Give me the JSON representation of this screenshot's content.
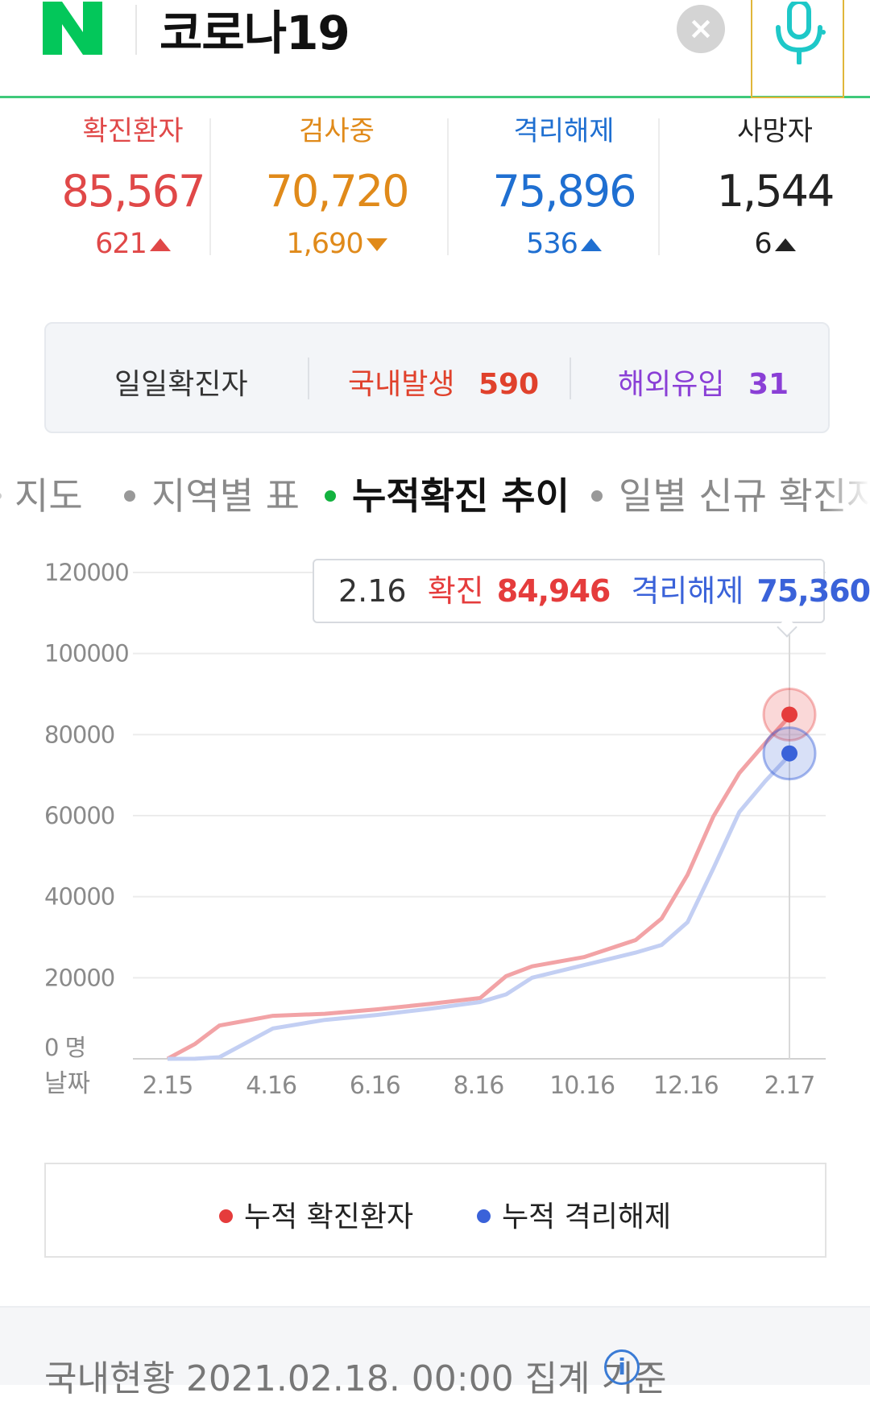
{
  "header": {
    "logo_letter": "N",
    "query": "코로나19",
    "clear_glyph": "×",
    "icons": [
      "naver-logo",
      "clear-icon",
      "microphone-icon"
    ],
    "brand_color": "#03c75a",
    "mic_color": "#1ec8c8"
  },
  "stats": [
    {
      "label": "확진환자",
      "value": "85,567",
      "change": "621",
      "direction": "up",
      "color": "#e04848"
    },
    {
      "label": "검사중",
      "value": "70,720",
      "change": "1,690",
      "direction": "down",
      "color": "#e08a1a"
    },
    {
      "label": "격리해제",
      "value": "75,896",
      "change": "536",
      "direction": "up",
      "color": "#1f6fd1"
    },
    {
      "label": "사망자",
      "value": "1,544",
      "change": "6",
      "direction": "up",
      "color": "#222222"
    }
  ],
  "daily": {
    "label": "일일확진자",
    "domestic_label": "국내발생",
    "domestic_value": "590",
    "overseas_label": "해외유입",
    "overseas_value": "31"
  },
  "tabs": [
    {
      "label": "지도",
      "active": false
    },
    {
      "label": "지역별 표",
      "active": false
    },
    {
      "label": "누적확진 추이",
      "active": true
    },
    {
      "label": "일별 신규 확진자",
      "active": false
    }
  ],
  "tooltip": {
    "date": "2.16",
    "confirmed_label": "확진",
    "confirmed_value": "84,946",
    "released_label": "격리해제",
    "released_value": "75,360"
  },
  "chart_data": {
    "type": "line",
    "y_ticks": [
      "120000",
      "100000",
      "80000",
      "60000",
      "40000",
      "20000",
      "0 명"
    ],
    "ylim": [
      0,
      120000
    ],
    "xlabel": "날짜",
    "x_ticks": [
      "2.15",
      "4.16",
      "6.16",
      "8.16",
      "10.16",
      "12.16",
      "2.17"
    ],
    "grid": true,
    "series": [
      {
        "name": "누적 확진환자",
        "color": "#f2a3a6",
        "x": [
          "2.15",
          "3.1",
          "3.15",
          "4.16",
          "5.16",
          "6.16",
          "7.16",
          "8.16",
          "9.1",
          "9.16",
          "10.16",
          "11.16",
          "12.1",
          "12.16",
          "1.1",
          "1.16",
          "2.1",
          "2.16"
        ],
        "values": [
          28,
          3700,
          8200,
          10600,
          11100,
          12200,
          13500,
          15000,
          20400,
          22800,
          25100,
          29300,
          34600,
          45400,
          59800,
          70500,
          77900,
          84946
        ]
      },
      {
        "name": "누적 격리해제",
        "color": "#c3cff3",
        "x": [
          "2.15",
          "3.1",
          "3.15",
          "4.16",
          "5.16",
          "6.16",
          "7.16",
          "8.16",
          "9.1",
          "9.16",
          "10.16",
          "11.16",
          "12.1",
          "12.16",
          "1.1",
          "1.16",
          "2.1",
          "2.16"
        ],
        "values": [
          9,
          20,
          400,
          7500,
          9600,
          10800,
          12300,
          14000,
          15900,
          20000,
          23100,
          26200,
          28100,
          33700,
          47000,
          60900,
          68500,
          75360
        ]
      }
    ]
  },
  "legend": {
    "confirmed_label": "누적 확진환자",
    "released_label": "누적 격리해제",
    "confirmed_color": "#e53c3c",
    "released_color": "#3a62d9"
  },
  "footer": {
    "text": "국내현황 2021.02.18. 00:00 집계 기준",
    "info_glyph": "i"
  }
}
